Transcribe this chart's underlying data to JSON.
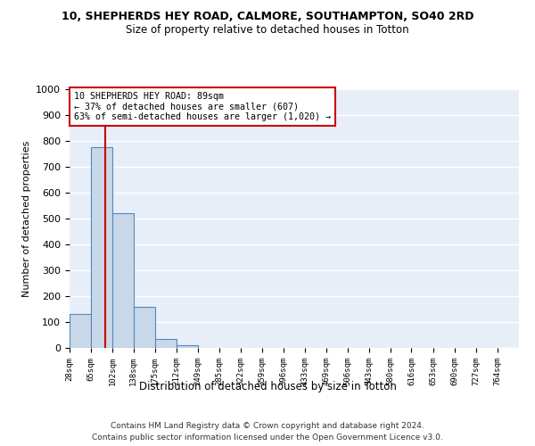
{
  "title": "10, SHEPHERDS HEY ROAD, CALMORE, SOUTHAMPTON, SO40 2RD",
  "subtitle": "Size of property relative to detached houses in Totton",
  "xlabel": "Distribution of detached houses by size in Totton",
  "ylabel": "Number of detached properties",
  "bin_edges": [
    28,
    65,
    102,
    138,
    175,
    212,
    249,
    285,
    322,
    359,
    396,
    433,
    469,
    506,
    543,
    580,
    616,
    653,
    690,
    727,
    764
  ],
  "bar_heights": [
    130,
    775,
    520,
    158,
    35,
    12,
    0,
    0,
    0,
    0,
    0,
    0,
    0,
    0,
    0,
    0,
    0,
    0,
    0,
    0
  ],
  "bar_color": "#c8d8e8",
  "bar_edge_color": "#5588bb",
  "property_size": 89,
  "red_line_color": "#cc0000",
  "annotation_text": "10 SHEPHERDS HEY ROAD: 89sqm\n← 37% of detached houses are smaller (607)\n63% of semi-detached houses are larger (1,020) →",
  "annotation_box_color": "#cc0000",
  "ylim": [
    0,
    1000
  ],
  "yticks": [
    0,
    100,
    200,
    300,
    400,
    500,
    600,
    700,
    800,
    900,
    1000
  ],
  "bg_color": "#e8eef8",
  "grid_color": "#ffffff",
  "fig_bg_color": "#ffffff",
  "footer_line1": "Contains HM Land Registry data © Crown copyright and database right 2024.",
  "footer_line2": "Contains public sector information licensed under the Open Government Licence v3.0."
}
